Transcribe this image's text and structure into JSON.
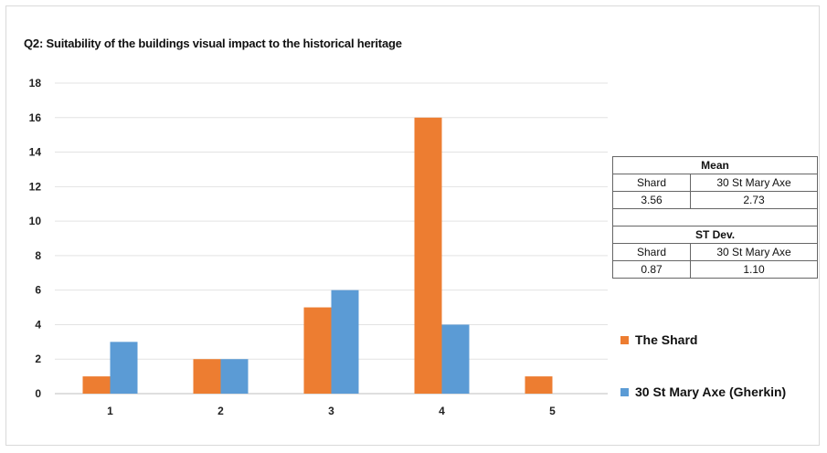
{
  "title": "Q2: Suitability of the buildings visual impact to the historical heritage",
  "chart_data": {
    "type": "bar",
    "title": "Q2: Suitability of the buildings visual impact to the historical heritage",
    "categories": [
      "1",
      "2",
      "3",
      "4",
      "5"
    ],
    "series": [
      {
        "name": "The Shard",
        "values": [
          1,
          2,
          5,
          16,
          1
        ],
        "color": "#ED7D31"
      },
      {
        "name": "30 St Mary Axe (Gherkin)",
        "values": [
          3,
          2,
          6,
          4,
          0
        ],
        "color": "#5B9BD5"
      }
    ],
    "ylim": [
      0,
      18
    ],
    "yticks": [
      0,
      2,
      4,
      6,
      8,
      10,
      12,
      14,
      16,
      18
    ],
    "xlabel": "",
    "ylabel": "",
    "grid": true,
    "legend_position": "right"
  },
  "stats": {
    "mean_label": "Mean",
    "stdev_label": "ST Dev.",
    "col1": "Shard",
    "col2": "30 St Mary Axe",
    "mean_values": [
      "3.56",
      "2.73"
    ],
    "stdev_values": [
      "0.87",
      "1.10"
    ]
  }
}
